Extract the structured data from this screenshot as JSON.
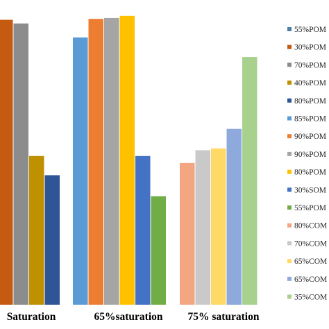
{
  "chart_data": {
    "type": "bar",
    "title": "",
    "xlabel": "",
    "ylabel": "",
    "ylim": [
      0,
      100
    ],
    "grid": false,
    "legend_position": "right",
    "categories": [
      "Saturation",
      "65%saturation",
      "75% saturation"
    ],
    "groups": [
      {
        "category": "Saturation",
        "bars": [
          {
            "series": "30%POM",
            "color": "#C55A11",
            "value": 93.5
          },
          {
            "series": "70%POM",
            "color": "#8C8C8C",
            "value": 92.3
          },
          {
            "series": "40%POM",
            "color": "#BF9000",
            "value": 48.8
          },
          {
            "series": "80%POM",
            "color": "#2F5597",
            "value": 42.5
          }
        ]
      },
      {
        "category": "65%saturation",
        "bars": [
          {
            "series": "85%POM",
            "color": "#5B9BD5",
            "value": 87.7
          },
          {
            "series": "90%POM",
            "color": "#ED7D31",
            "value": 93.8
          },
          {
            "series": "90%POM",
            "color": "#A5A5A5",
            "value": 94.1
          },
          {
            "series": "80%POM",
            "color": "#FFC000",
            "value": 94.8
          },
          {
            "series": "30%SOM",
            "color": "#4472C4",
            "value": 48.8
          },
          {
            "series": "55%POM",
            "color": "#70AD47",
            "value": 35.6
          }
        ]
      },
      {
        "category": "75% saturation",
        "bars": [
          {
            "series": "80%COM",
            "color": "#F4A582",
            "value": 46.5
          },
          {
            "series": "70%COM",
            "color": "#C9C9C9",
            "value": 50.7
          },
          {
            "series": "65%COM",
            "color": "#FFD966",
            "value": 51.3
          },
          {
            "series": "65%COM",
            "color": "#8EA9DB",
            "value": 57.7
          },
          {
            "series": "35%COM",
            "color": "#A9D18E",
            "value": 81.3
          }
        ]
      }
    ],
    "legend": [
      {
        "label": "55%POM",
        "color": "#4E7FA6"
      },
      {
        "label": "30%POM",
        "color": "#C55A11"
      },
      {
        "label": "70%POM",
        "color": "#8C8C8C"
      },
      {
        "label": "40%POM",
        "color": "#BF9000"
      },
      {
        "label": "80%POM",
        "color": "#2F5597"
      },
      {
        "label": "85%POM",
        "color": "#5B9BD5"
      },
      {
        "label": "90%POM",
        "color": "#ED7D31"
      },
      {
        "label": "90%POM",
        "color": "#A5A5A5"
      },
      {
        "label": "80%POM",
        "color": "#FFC000"
      },
      {
        "label": "30%SOM",
        "color": "#4472C4"
      },
      {
        "label": "55%POM",
        "color": "#70AD47"
      },
      {
        "label": "80%COM",
        "color": "#F4A582"
      },
      {
        "label": "70%COM",
        "color": "#C9C9C9"
      },
      {
        "label": "65%COM",
        "color": "#FFD966"
      },
      {
        "label": "65%COM",
        "color": "#8EA9DB"
      },
      {
        "label": "35%COM",
        "color": "#A9D18E"
      }
    ]
  }
}
